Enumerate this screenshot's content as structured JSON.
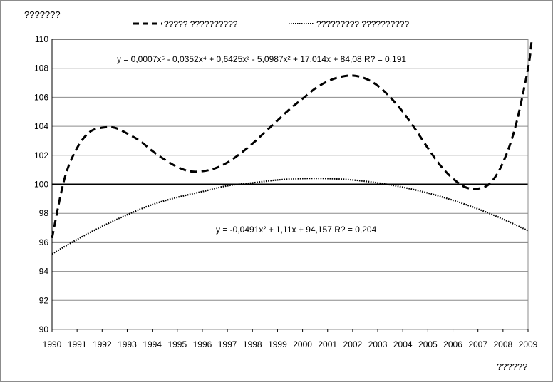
{
  "chart_data": {
    "type": "line",
    "title": "???????",
    "xlabel": "??????",
    "ylabel": "",
    "x": [
      1990,
      1991,
      1992,
      1993,
      1994,
      1995,
      1996,
      1997,
      1998,
      1999,
      2000,
      2001,
      2002,
      2003,
      2004,
      2005,
      2006,
      2007,
      2008,
      2009
    ],
    "ylim": [
      90,
      110
    ],
    "yticks": [
      90,
      92,
      94,
      96,
      98,
      100,
      102,
      104,
      106,
      108,
      110
    ],
    "grid": true,
    "reference_lines": [
      100,
      96,
      110
    ],
    "legend_position": "top",
    "series": [
      {
        "name": "????? ??????????",
        "style": "dashed",
        "color": "#000000",
        "points": [
          [
            1990,
            96.3
          ],
          [
            1990.5,
            100.4
          ],
          [
            1991,
            102.5
          ],
          [
            1991.5,
            103.6
          ],
          [
            1992,
            103.9
          ],
          [
            1992.5,
            103.9
          ],
          [
            1993,
            103.5
          ],
          [
            1993.5,
            103
          ],
          [
            1994,
            102.3
          ],
          [
            1994.5,
            101.7
          ],
          [
            1995,
            101.2
          ],
          [
            1995.5,
            100.9
          ],
          [
            1996,
            100.9
          ],
          [
            1996.5,
            101.1
          ],
          [
            1997,
            101.5
          ],
          [
            1997.5,
            102.1
          ],
          [
            1998,
            102.8
          ],
          [
            1998.5,
            103.6
          ],
          [
            1999,
            104.4
          ],
          [
            1999.5,
            105.2
          ],
          [
            2000,
            105.9
          ],
          [
            2000.5,
            106.6
          ],
          [
            2001,
            107.1
          ],
          [
            2001.5,
            107.4
          ],
          [
            2002,
            107.5
          ],
          [
            2002.5,
            107.3
          ],
          [
            2003,
            106.8
          ],
          [
            2003.5,
            106
          ],
          [
            2004,
            105
          ],
          [
            2004.5,
            103.8
          ],
          [
            2005,
            102.5
          ],
          [
            2005.5,
            101.3
          ],
          [
            2006,
            100.4
          ],
          [
            2006.5,
            99.8
          ],
          [
            2007,
            99.7
          ],
          [
            2007.5,
            100.1
          ],
          [
            2008,
            101.5
          ],
          [
            2008.5,
            104
          ],
          [
            2009,
            108
          ],
          [
            2009.15,
            110
          ]
        ]
      },
      {
        "name": "????????? ??????????",
        "style": "dotted",
        "color": "#000000",
        "points": [
          [
            1990,
            95.2
          ],
          [
            1991,
            96.2
          ],
          [
            1992,
            97.1
          ],
          [
            1993,
            97.9
          ],
          [
            1994,
            98.6
          ],
          [
            1995,
            99.1
          ],
          [
            1996,
            99.5
          ],
          [
            1997,
            99.9
          ],
          [
            1998,
            100.1
          ],
          [
            1999,
            100.3
          ],
          [
            2000,
            100.4
          ],
          [
            2001,
            100.4
          ],
          [
            2002,
            100.3
          ],
          [
            2003,
            100.1
          ],
          [
            2004,
            99.8
          ],
          [
            2005,
            99.4
          ],
          [
            2006,
            98.9
          ],
          [
            2007,
            98.3
          ],
          [
            2008,
            97.6
          ],
          [
            2009,
            96.8
          ]
        ]
      }
    ],
    "annotations": [
      {
        "text": "y = 0,0007x⁵ - 0,0352x⁴ + 0,6425x³ - 5,0987x² + 17,014x + 84,08 R? = 0,191"
      },
      {
        "text": "y = -0,0491x² + 1,11x + 94,157 R? = 0,204"
      }
    ]
  }
}
